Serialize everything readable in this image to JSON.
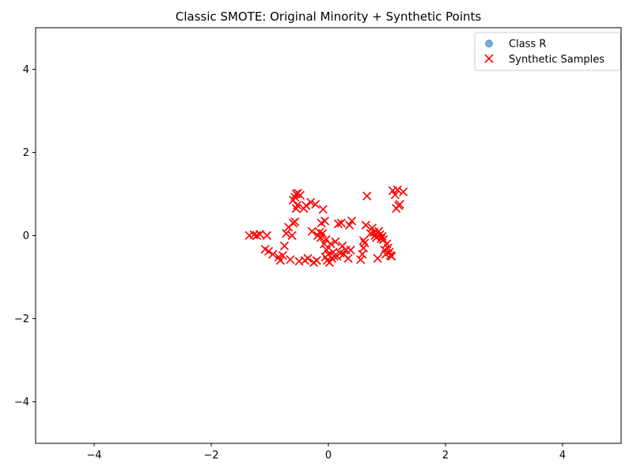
{
  "chart_data": {
    "type": "scatter",
    "title": "Classic SMOTE: Original Minority + Synthetic Points",
    "xlabel": "",
    "ylabel": "",
    "xlim": [
      -5,
      5
    ],
    "ylim": [
      -5,
      5
    ],
    "xticks": [
      -4,
      -2,
      0,
      2,
      4
    ],
    "yticks": [
      -4,
      -2,
      0,
      2,
      4
    ],
    "xtick_labels": [
      "−4",
      "−2",
      "0",
      "2",
      "4"
    ],
    "ytick_labels": [
      "−4",
      "−2",
      "0",
      "2",
      "4"
    ],
    "grid": false,
    "legend_position": "top-right",
    "series": [
      {
        "name": "Class R",
        "marker": "circle",
        "color": "#1f77b4",
        "points": []
      },
      {
        "name": "Synthetic Samples",
        "marker": "x",
        "color": "#ff0000",
        "points": [
          [
            -1.35,
            0.0
          ],
          [
            -1.27,
            0.02
          ],
          [
            -1.22,
            0.0
          ],
          [
            -1.17,
            0.03
          ],
          [
            -1.05,
            0.0
          ],
          [
            -1.08,
            -0.33
          ],
          [
            -1.02,
            -0.38
          ],
          [
            -0.95,
            -0.45
          ],
          [
            -0.85,
            -0.52
          ],
          [
            -0.82,
            -0.6
          ],
          [
            -0.78,
            -0.48
          ],
          [
            -0.75,
            -0.25
          ],
          [
            -0.72,
            0.05
          ],
          [
            -0.68,
            0.2
          ],
          [
            -0.65,
            -0.58
          ],
          [
            -0.62,
            0.0
          ],
          [
            -0.6,
            0.3
          ],
          [
            -0.57,
            0.33
          ],
          [
            -0.55,
            0.65
          ],
          [
            -0.53,
            0.73
          ],
          [
            -0.6,
            0.85
          ],
          [
            -0.57,
            0.92
          ],
          [
            -0.55,
            1.0
          ],
          [
            -0.52,
            1.02
          ],
          [
            -0.48,
            0.97
          ],
          [
            -0.5,
            -0.62
          ],
          [
            -0.4,
            -0.6
          ],
          [
            -0.35,
            -0.55
          ],
          [
            -0.42,
            0.65
          ],
          [
            -0.38,
            0.72
          ],
          [
            -0.3,
            0.8
          ],
          [
            -0.28,
            0.1
          ],
          [
            -0.22,
            0.75
          ],
          [
            -0.25,
            -0.65
          ],
          [
            -0.2,
            -0.6
          ],
          [
            -0.18,
            0.0
          ],
          [
            -0.15,
            0.08
          ],
          [
            -0.13,
            -0.05
          ],
          [
            -0.12,
            0.3
          ],
          [
            -0.1,
            0.05
          ],
          [
            -0.09,
            0.63
          ],
          [
            -0.07,
            -0.2
          ],
          [
            -0.06,
            0.35
          ],
          [
            -0.05,
            -0.52
          ],
          [
            -0.04,
            -0.1
          ],
          [
            -0.03,
            -0.35
          ],
          [
            -0.02,
            -0.6
          ],
          [
            0.0,
            -0.45
          ],
          [
            0.02,
            -0.65
          ],
          [
            0.04,
            -0.2
          ],
          [
            0.06,
            -0.55
          ],
          [
            0.08,
            -0.4
          ],
          [
            0.1,
            -0.5
          ],
          [
            0.12,
            -0.15
          ],
          [
            0.15,
            -0.5
          ],
          [
            0.17,
            0.28
          ],
          [
            0.2,
            -0.42
          ],
          [
            0.22,
            0.3
          ],
          [
            0.24,
            -0.25
          ],
          [
            0.26,
            -0.45
          ],
          [
            0.3,
            -0.35
          ],
          [
            0.34,
            -0.55
          ],
          [
            0.36,
            0.25
          ],
          [
            0.38,
            -0.35
          ],
          [
            0.4,
            0.35
          ],
          [
            0.55,
            -0.58
          ],
          [
            0.58,
            -0.45
          ],
          [
            0.6,
            -0.3
          ],
          [
            0.6,
            -0.12
          ],
          [
            0.62,
            -0.18
          ],
          [
            0.64,
            0.25
          ],
          [
            0.66,
            0.95
          ],
          [
            0.72,
            0.05
          ],
          [
            0.75,
            0.18
          ],
          [
            0.78,
            0.08
          ],
          [
            0.8,
            0.0
          ],
          [
            0.82,
            -0.05
          ],
          [
            0.84,
            -0.55
          ],
          [
            0.86,
            0.1
          ],
          [
            0.88,
            0.02
          ],
          [
            0.9,
            -0.08
          ],
          [
            0.92,
            -0.02
          ],
          [
            0.94,
            -0.1
          ],
          [
            0.96,
            -0.35
          ],
          [
            0.98,
            -0.45
          ],
          [
            1.0,
            -0.2
          ],
          [
            1.02,
            -0.3
          ],
          [
            1.04,
            -0.4
          ],
          [
            1.06,
            -0.48
          ],
          [
            1.08,
            -0.5
          ],
          [
            1.1,
            1.08
          ],
          [
            1.14,
            0.98
          ],
          [
            1.16,
            0.65
          ],
          [
            1.18,
            1.1
          ],
          [
            1.2,
            0.72
          ],
          [
            1.22,
            0.75
          ],
          [
            1.28,
            1.05
          ]
        ]
      }
    ]
  }
}
